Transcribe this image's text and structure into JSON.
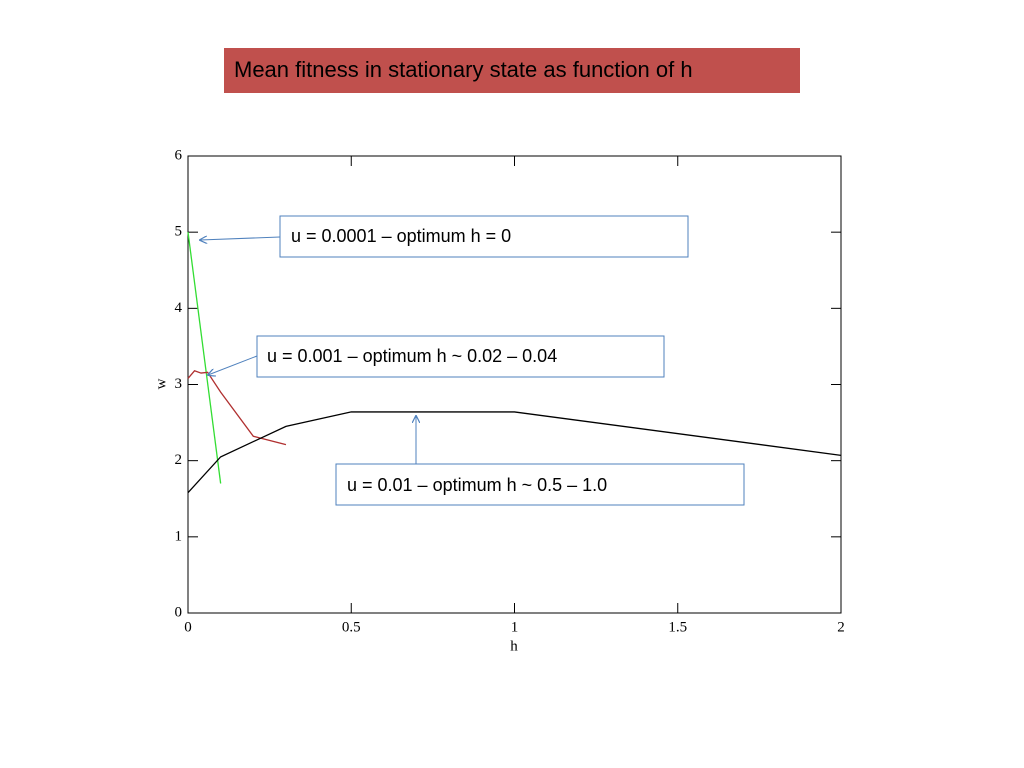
{
  "chart_data": {
    "type": "line",
    "title": "Mean fitness in stationary state as function of h",
    "xlabel": "h",
    "ylabel": "w",
    "xlim": [
      0,
      2
    ],
    "xticks": [
      0,
      0.5,
      1,
      1.5,
      2
    ],
    "ylim": [
      0,
      6
    ],
    "yticks": [
      0,
      1,
      2,
      3,
      4,
      5,
      6
    ],
    "series": [
      {
        "color": "#33dd33",
        "x": [
          0,
          0.1
        ],
        "values": [
          5.0,
          1.7
        ]
      },
      {
        "color": "#b03030",
        "x": [
          0,
          0.02,
          0.04,
          0.06,
          0.1,
          0.2,
          0.3
        ],
        "values": [
          3.08,
          3.18,
          3.15,
          3.16,
          2.9,
          2.32,
          2.21
        ]
      },
      {
        "color": "#000000",
        "x": [
          0,
          0.1,
          0.3,
          0.5,
          1,
          2
        ],
        "values": [
          1.58,
          2.05,
          2.45,
          2.64,
          2.64,
          2.07
        ]
      }
    ],
    "annotations": [
      "u = 0.0001 – optimum h = 0",
      "u = 0.001 – optimum h ~ 0.02 – 0.04",
      "u = 0.01 – optimum h ~ 0.5 – 1.0"
    ]
  }
}
